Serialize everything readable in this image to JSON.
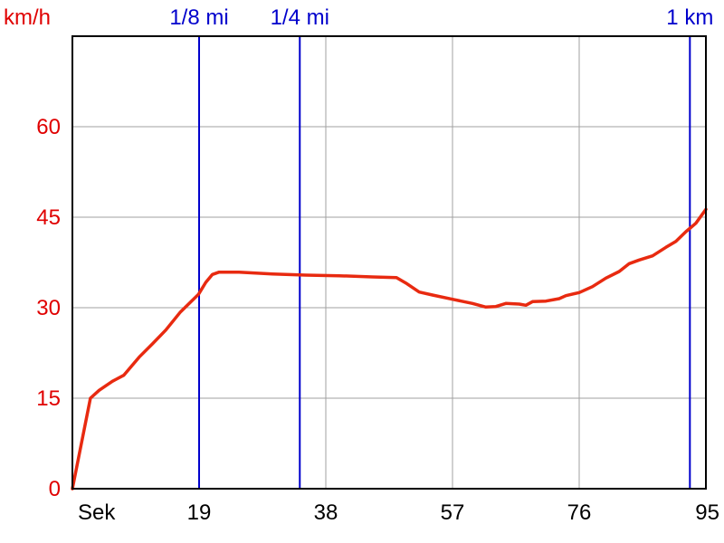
{
  "chart_data": {
    "type": "line",
    "ylabel": "km/h",
    "xlabel": "Sek",
    "xlim": [
      0,
      95
    ],
    "ylim": [
      0,
      75
    ],
    "grid": true,
    "x_ticks": [
      19,
      38,
      57,
      76,
      95
    ],
    "y_ticks": [
      0,
      15,
      30,
      45,
      60
    ],
    "colors": {
      "series": "#e82a10",
      "markers": "#0000cc",
      "ytick": "#e00000",
      "grid": "#a0a0a0"
    },
    "markers": [
      {
        "label": "1/8 mi",
        "x": 19.0
      },
      {
        "label": "1/4 mi",
        "x": 34.1
      },
      {
        "label": "1 km",
        "x": 92.6
      }
    ],
    "series": [
      {
        "values": [
          [
            0,
            0
          ],
          [
            2.7,
            15
          ],
          [
            4,
            16.3
          ],
          [
            6,
            17.8
          ],
          [
            7.7,
            18.8
          ],
          [
            10,
            21.8
          ],
          [
            12,
            24
          ],
          [
            14,
            26.3
          ],
          [
            16.2,
            29.3
          ],
          [
            18.9,
            32.2
          ],
          [
            20,
            34.2
          ],
          [
            21,
            35.5
          ],
          [
            22,
            35.9
          ],
          [
            25,
            35.9
          ],
          [
            30,
            35.6
          ],
          [
            35,
            35.4
          ],
          [
            40,
            35.3
          ],
          [
            45,
            35.1
          ],
          [
            48.6,
            35.0
          ],
          [
            50,
            34.1
          ],
          [
            52,
            32.6
          ],
          [
            54,
            32.1
          ],
          [
            57,
            31.4
          ],
          [
            60,
            30.7
          ],
          [
            62,
            30.1
          ],
          [
            63.5,
            30.2
          ],
          [
            65,
            30.7
          ],
          [
            67,
            30.6
          ],
          [
            68,
            30.4
          ],
          [
            69,
            31.0
          ],
          [
            71,
            31.1
          ],
          [
            73,
            31.5
          ],
          [
            74,
            32.0
          ],
          [
            76,
            32.5
          ],
          [
            78,
            33.5
          ],
          [
            80,
            34.9
          ],
          [
            82,
            36.0
          ],
          [
            83.5,
            37.3
          ],
          [
            85,
            37.9
          ],
          [
            87,
            38.6
          ],
          [
            89,
            40.0
          ],
          [
            90.5,
            41.0
          ],
          [
            92,
            42.6
          ],
          [
            93.5,
            44.0
          ],
          [
            95,
            46.3
          ]
        ]
      }
    ]
  }
}
